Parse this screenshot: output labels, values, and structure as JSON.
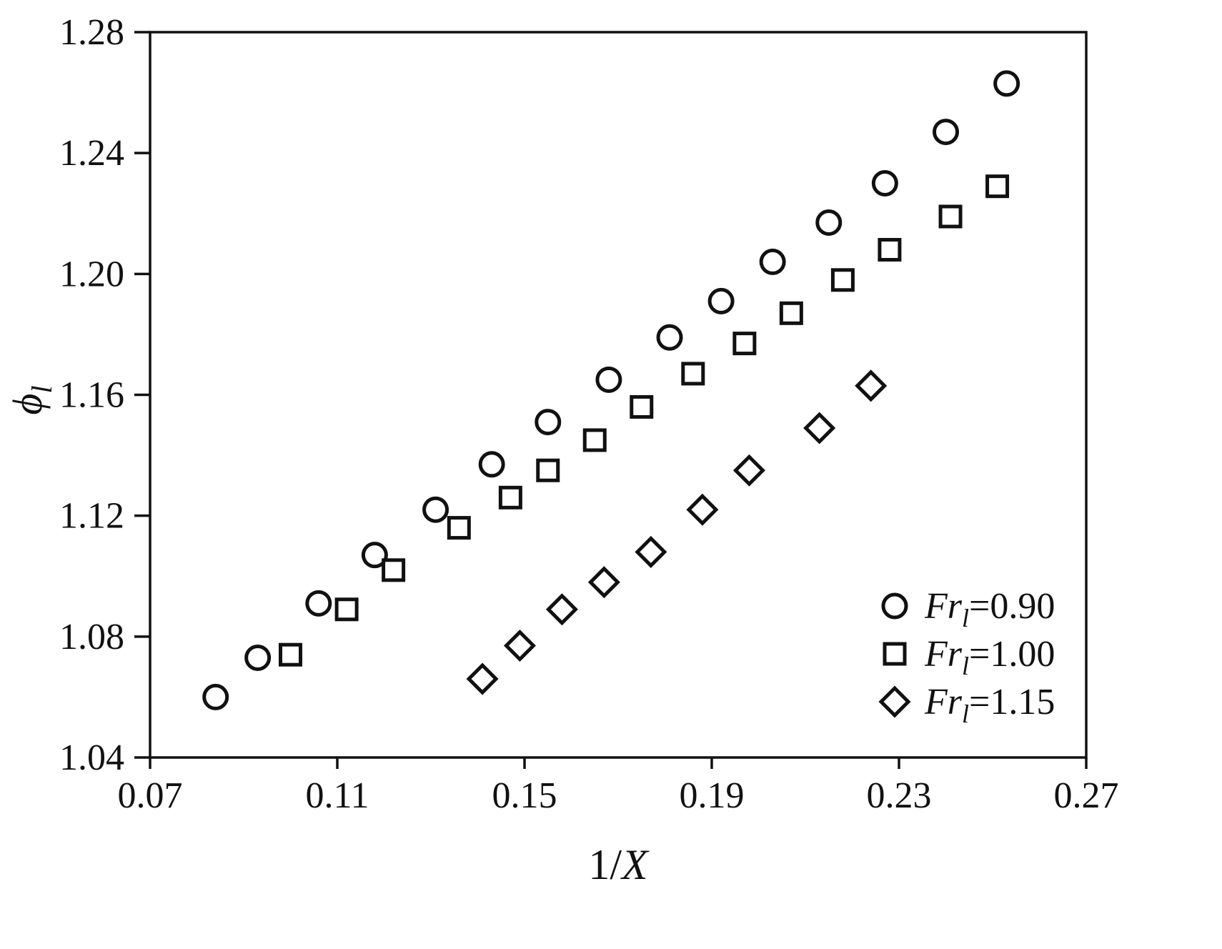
{
  "chart_data": {
    "type": "scatter",
    "title": "",
    "xlabel": "1/X",
    "ylabel": "ϕ_l",
    "labels": {
      "x_plain": "1/",
      "x_italic": "X",
      "y_main": "ϕ",
      "y_sub": "l"
    },
    "xlim": [
      0.07,
      0.27
    ],
    "ylim": [
      1.04,
      1.28
    ],
    "x_ticks": [
      0.07,
      0.11,
      0.15,
      0.19,
      0.23,
      0.27
    ],
    "y_ticks": [
      1.04,
      1.08,
      1.12,
      1.16,
      1.2,
      1.24,
      1.28
    ],
    "grid": false,
    "legend_position": "bottom-right",
    "marker_color": "#111111",
    "series": [
      {
        "name": "Fr_l=0.90",
        "marker": "circle",
        "label": {
          "prefix": "Fr",
          "sub": "l",
          "value": "=0.90"
        },
        "points": [
          [
            0.084,
            1.06
          ],
          [
            0.093,
            1.073
          ],
          [
            0.106,
            1.091
          ],
          [
            0.118,
            1.107
          ],
          [
            0.131,
            1.122
          ],
          [
            0.143,
            1.137
          ],
          [
            0.155,
            1.151
          ],
          [
            0.168,
            1.165
          ],
          [
            0.181,
            1.179
          ],
          [
            0.192,
            1.191
          ],
          [
            0.203,
            1.204
          ],
          [
            0.215,
            1.217
          ],
          [
            0.227,
            1.23
          ],
          [
            0.24,
            1.247
          ],
          [
            0.253,
            1.263
          ]
        ]
      },
      {
        "name": "Fr_l=1.00",
        "marker": "square",
        "label": {
          "prefix": "Fr",
          "sub": "l",
          "value": "=1.00"
        },
        "points": [
          [
            0.1,
            1.074
          ],
          [
            0.112,
            1.089
          ],
          [
            0.122,
            1.102
          ],
          [
            0.136,
            1.116
          ],
          [
            0.147,
            1.126
          ],
          [
            0.155,
            1.135
          ],
          [
            0.165,
            1.145
          ],
          [
            0.175,
            1.156
          ],
          [
            0.186,
            1.167
          ],
          [
            0.197,
            1.177
          ],
          [
            0.207,
            1.187
          ],
          [
            0.218,
            1.198
          ],
          [
            0.228,
            1.208
          ],
          [
            0.241,
            1.219
          ],
          [
            0.251,
            1.229
          ]
        ]
      },
      {
        "name": "Fr_l=1.15",
        "marker": "diamond",
        "label": {
          "prefix": "Fr",
          "sub": "l",
          "value": "=1.15"
        },
        "points": [
          [
            0.141,
            1.066
          ],
          [
            0.149,
            1.077
          ],
          [
            0.158,
            1.089
          ],
          [
            0.167,
            1.098
          ],
          [
            0.177,
            1.108
          ],
          [
            0.188,
            1.122
          ],
          [
            0.198,
            1.135
          ],
          [
            0.213,
            1.149
          ],
          [
            0.224,
            1.163
          ]
        ]
      }
    ]
  }
}
